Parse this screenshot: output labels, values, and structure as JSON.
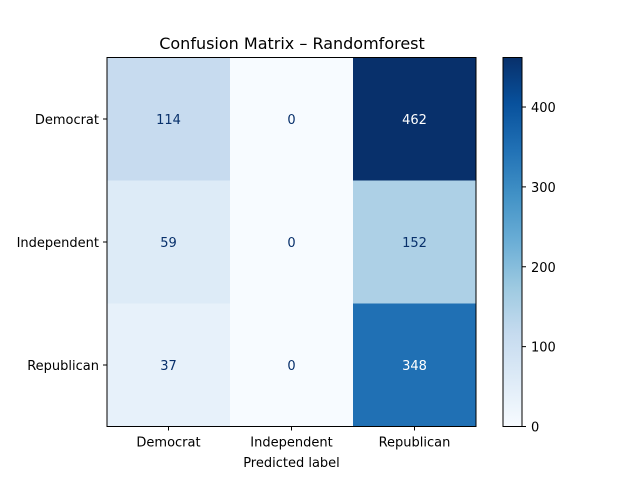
{
  "chart_data": {
    "type": "heatmap",
    "title": "Confusion Matrix – Randomforest",
    "xlabel": "Predicted label",
    "ylabel": "",
    "row_labels": [
      "Democrat",
      "Independent",
      "Republican"
    ],
    "col_labels": [
      "Democrat",
      "Independent",
      "Republican"
    ],
    "values": [
      [
        114,
        0,
        462
      ],
      [
        59,
        0,
        152
      ],
      [
        37,
        0,
        348
      ]
    ],
    "colormap": "Blues",
    "colorbar": {
      "range": [
        0,
        462
      ],
      "ticks": [
        0,
        100,
        200,
        300,
        400
      ]
    },
    "grid": false
  }
}
